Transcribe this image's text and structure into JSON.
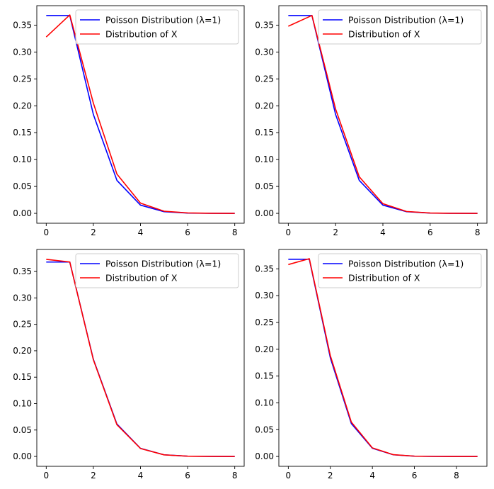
{
  "figure": {
    "colors": {
      "poisson": "#0000ff",
      "x_dist": "#ff0000",
      "axis": "#000000",
      "legend_border": "#cccccc"
    }
  },
  "chart_data": [
    {
      "type": "line",
      "x_poisson": [
        0,
        1,
        2,
        3,
        4,
        5,
        6,
        7,
        8
      ],
      "x_obs": [
        0,
        1,
        2,
        3,
        4,
        5,
        6,
        7,
        8
      ],
      "series": [
        {
          "name": "Poisson Distribution (λ=1)",
          "color": "#0000ff",
          "values": [
            0.3679,
            0.3679,
            0.1839,
            0.0613,
            0.0153,
            0.0031,
            0.0005,
            0.0001,
            0.0
          ]
        },
        {
          "name": "Distribution of X",
          "color": "#ff0000",
          "values": [
            0.328,
            0.369,
            0.205,
            0.073,
            0.019,
            0.004,
            0.0008,
            0.0001,
            0.0
          ]
        }
      ],
      "xticks": [
        "0",
        "2",
        "4",
        "6",
        "8"
      ],
      "yticks": [
        "0.00",
        "0.05",
        "0.10",
        "0.15",
        "0.20",
        "0.25",
        "0.30",
        "0.35"
      ],
      "xlim": [
        -0.4,
        8.4
      ],
      "ylim": [
        -0.0184,
        0.3862
      ],
      "legend": "top-right",
      "title": "",
      "xlabel": "",
      "ylabel": ""
    },
    {
      "type": "line",
      "x_poisson": [
        0,
        1,
        2,
        3,
        4,
        5,
        6,
        7,
        8
      ],
      "x_obs": [
        0,
        1,
        2,
        3,
        4,
        5,
        6,
        7,
        8
      ],
      "series": [
        {
          "name": "Poisson Distribution (λ=1)",
          "color": "#0000ff",
          "values": [
            0.3679,
            0.3679,
            0.1839,
            0.0613,
            0.0153,
            0.0031,
            0.0005,
            0.0001,
            0.0
          ]
        },
        {
          "name": "Distribution of X",
          "color": "#ff0000",
          "values": [
            0.348,
            0.368,
            0.194,
            0.068,
            0.018,
            0.0035,
            0.0006,
            0.0001,
            0.0
          ]
        }
      ],
      "xticks": [
        "0",
        "2",
        "4",
        "6",
        "8"
      ],
      "yticks": [
        "0.00",
        "0.05",
        "0.10",
        "0.15",
        "0.20",
        "0.25",
        "0.30",
        "0.35"
      ],
      "xlim": [
        -0.4,
        8.4
      ],
      "ylim": [
        -0.0184,
        0.3862
      ],
      "legend": "top-right",
      "title": "",
      "xlabel": "",
      "ylabel": ""
    },
    {
      "type": "line",
      "x_poisson": [
        0,
        1,
        2,
        3,
        4,
        5,
        6,
        7,
        8
      ],
      "x_obs": [
        0,
        1,
        2,
        3,
        4,
        5,
        6,
        7,
        8
      ],
      "series": [
        {
          "name": "Poisson Distribution (λ=1)",
          "color": "#0000ff",
          "values": [
            0.3679,
            0.3679,
            0.1839,
            0.0613,
            0.0153,
            0.0031,
            0.0005,
            0.0001,
            0.0
          ]
        },
        {
          "name": "Distribution of X",
          "color": "#ff0000",
          "values": [
            0.373,
            0.368,
            0.183,
            0.06,
            0.015,
            0.003,
            0.0005,
            0.0001,
            0.0
          ]
        }
      ],
      "xticks": [
        "0",
        "2",
        "4",
        "6",
        "8"
      ],
      "yticks": [
        "0.00",
        "0.05",
        "0.10",
        "0.15",
        "0.20",
        "0.25",
        "0.30",
        "0.35"
      ],
      "xlim": [
        -0.4,
        8.4
      ],
      "ylim": [
        -0.0187,
        0.3917
      ],
      "legend": "top-right",
      "title": "",
      "xlabel": "",
      "ylabel": ""
    },
    {
      "type": "line",
      "x_poisson": [
        0,
        1,
        2,
        3,
        4,
        5,
        6,
        7,
        8,
        9
      ],
      "x_obs": [
        0,
        1,
        2,
        3,
        4,
        5,
        6,
        7,
        8,
        9
      ],
      "series": [
        {
          "name": "Poisson Distribution (λ=1)",
          "color": "#0000ff",
          "values": [
            0.3679,
            0.3679,
            0.1839,
            0.0613,
            0.0153,
            0.0031,
            0.0005,
            0.0001,
            0.0,
            0.0
          ]
        },
        {
          "name": "Distribution of X",
          "color": "#ff0000",
          "values": [
            0.358,
            0.369,
            0.188,
            0.064,
            0.016,
            0.0033,
            0.0006,
            0.0001,
            0.0,
            0.0
          ]
        }
      ],
      "xticks": [
        "0",
        "2",
        "4",
        "6",
        "8"
      ],
      "yticks": [
        "0.00",
        "0.05",
        "0.10",
        "0.15",
        "0.20",
        "0.25",
        "0.30",
        "0.35"
      ],
      "xlim": [
        -0.45,
        9.45
      ],
      "ylim": [
        -0.0184,
        0.3862
      ],
      "legend": "top-right",
      "title": "",
      "xlabel": "",
      "ylabel": ""
    }
  ]
}
